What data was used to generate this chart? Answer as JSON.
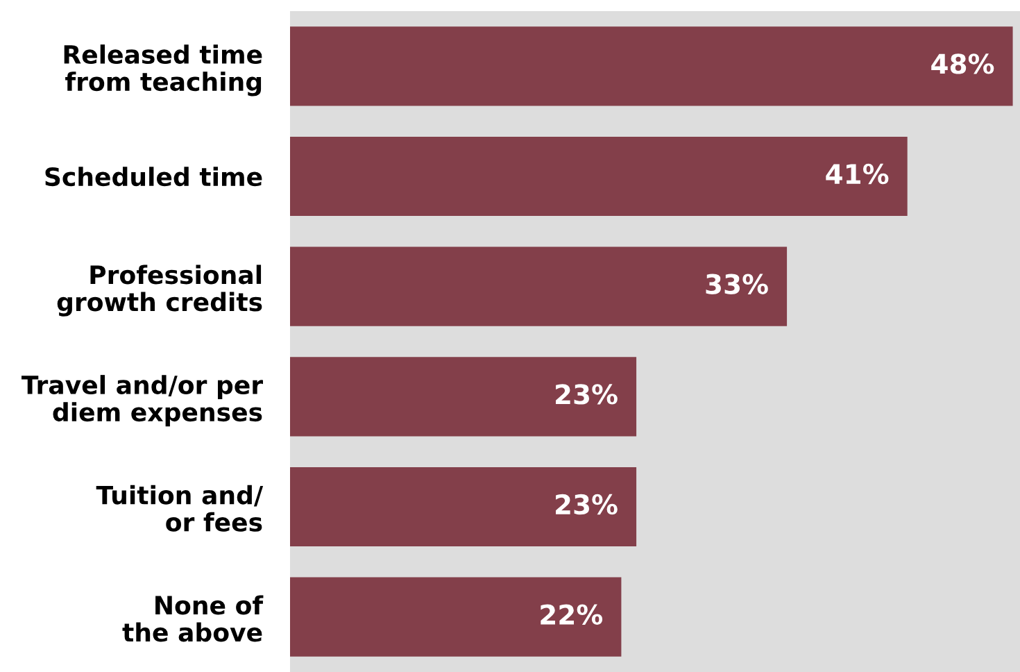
{
  "chart_data": {
    "type": "bar",
    "orientation": "horizontal",
    "categories": [
      "Released time\nfrom teaching",
      "Scheduled time",
      "Professional\ngrowth credits",
      "Travel and/or per\ndiem expenses",
      "Tuition and/\nor fees",
      "None of\nthe above"
    ],
    "values": [
      48,
      41,
      33,
      23,
      23,
      22
    ],
    "value_labels": [
      "48%",
      "41%",
      "33%",
      "23%",
      "23%",
      "22%"
    ],
    "color": "#833f4a",
    "grid": false,
    "legend": false
  }
}
